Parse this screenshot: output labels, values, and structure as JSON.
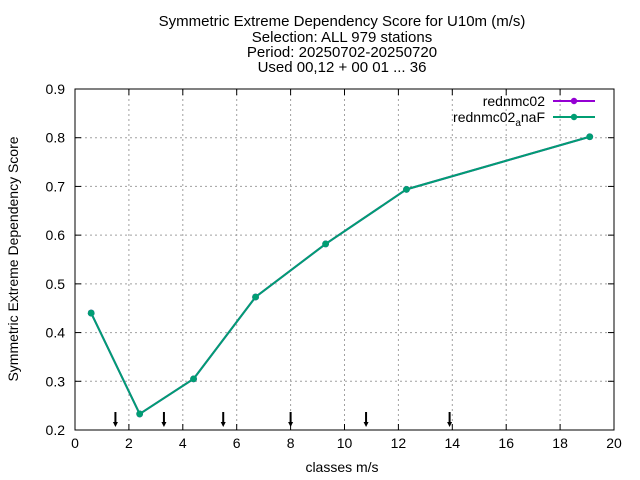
{
  "chart_data": {
    "type": "line",
    "title_lines": [
      "Symmetric Extreme Dependency Score  for U10m (m/s)",
      "Selection: ALL    979 stations",
      "Period: 20250702-20250720",
      "Used 00,12 + 00 01 ... 36"
    ],
    "xlabel": "classes m/s",
    "ylabel": "Symmetric Extreme Dependency Score",
    "xlim": [
      0,
      20
    ],
    "ylim": [
      0.2,
      0.9
    ],
    "xticks": [
      0,
      2,
      4,
      6,
      8,
      10,
      12,
      14,
      16,
      18,
      20
    ],
    "yticks": [
      0.2,
      0.3,
      0.4,
      0.5,
      0.6,
      0.7,
      0.8,
      0.9
    ],
    "grid": true,
    "legend_position": "top-right",
    "series": [
      {
        "name": "rednmc02",
        "color": "#9400d3",
        "x": [
          0.6,
          2.4,
          4.4,
          6.7,
          9.3,
          12.3,
          19.1
        ],
        "y": [
          0.44,
          0.233,
          0.305,
          0.473,
          0.582,
          0.694,
          0.802
        ]
      },
      {
        "name": "rednmc02",
        "name_subscript": "a",
        "name_suffix": "naF",
        "color": "#009e73",
        "x": [
          0.6,
          2.4,
          4.4,
          6.7,
          9.3,
          12.3,
          19.1
        ],
        "y": [
          0.44,
          0.233,
          0.305,
          0.473,
          0.582,
          0.694,
          0.802
        ]
      }
    ],
    "class_boundaries": [
      1.5,
      3.3,
      5.5,
      8.0,
      10.8,
      13.9
    ]
  }
}
